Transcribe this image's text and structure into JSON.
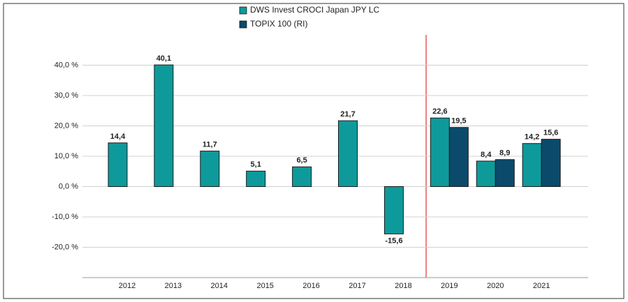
{
  "chart_data": {
    "type": "bar",
    "categories": [
      "2012",
      "2013",
      "2014",
      "2015",
      "2016",
      "2017",
      "2018",
      "2019",
      "2020",
      "2021"
    ],
    "series": [
      {
        "name": "DWS Invest CROCI Japan  JPY LC",
        "color": "#0e9a9b",
        "values": [
          14.4,
          40.1,
          11.7,
          5.1,
          6.5,
          21.7,
          -15.6,
          22.6,
          8.4,
          14.2
        ],
        "value_labels": [
          "14,4",
          "40,1",
          "11,7",
          "5,1",
          "6,5",
          "21,7",
          "-15,6",
          "22,6",
          "8,4",
          "14,2"
        ]
      },
      {
        "name": "TOPIX 100 (RI)",
        "color": "#0b4a6b",
        "values": [
          null,
          null,
          null,
          null,
          null,
          null,
          null,
          19.5,
          8.9,
          15.6
        ],
        "value_labels": [
          null,
          null,
          null,
          null,
          null,
          null,
          null,
          "19,5",
          "8,9",
          "15,6"
        ]
      }
    ],
    "ylim": [
      -30,
      50
    ],
    "yticks": [
      {
        "value": -20,
        "label": "-20,0 %"
      },
      {
        "value": -10,
        "label": "-10,0 %"
      },
      {
        "value": 0,
        "label": "0,0 %"
      },
      {
        "value": 10,
        "label": "10,0 %"
      },
      {
        "value": 20,
        "label": "20,0 %"
      },
      {
        "value": 30,
        "label": "30,0 %"
      },
      {
        "value": 40,
        "label": "40,0 %"
      }
    ],
    "grid": true
  }
}
